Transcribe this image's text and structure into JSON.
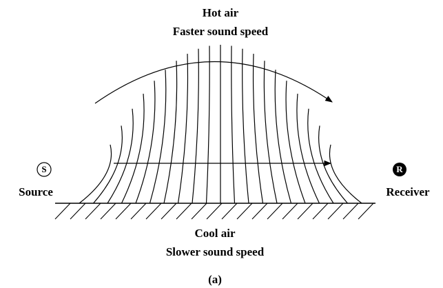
{
  "labels": {
    "top_title": "Hot air",
    "top_subtitle": "Faster sound speed",
    "source_symbol": "S",
    "source": "Source",
    "receiver_symbol": "R",
    "receiver": "Receiver",
    "bottom_title": "Cool air",
    "bottom_subtitle": "Slower sound speed",
    "caption": "(a)"
  }
}
